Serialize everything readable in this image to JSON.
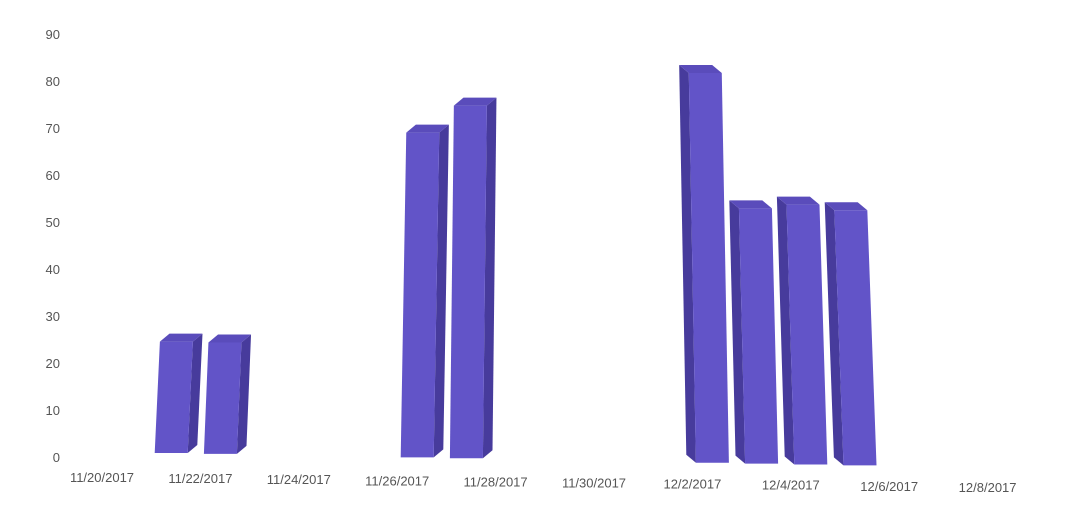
{
  "chart_data": {
    "type": "bar",
    "style": "3d-perspective",
    "title": "",
    "xlabel": "",
    "ylabel": "",
    "ylim": [
      0,
      90
    ],
    "y_ticks": [
      "0",
      "10",
      "20",
      "30",
      "40",
      "50",
      "60",
      "70",
      "80",
      "90"
    ],
    "x_ticks": [
      "11/20/2017",
      "11/22/2017",
      "11/24/2017",
      "11/26/2017",
      "11/28/2017",
      "11/30/2017",
      "12/2/2017",
      "12/4/2017",
      "12/6/2017",
      "12/8/2017"
    ],
    "grid": false,
    "legend": "none",
    "bar_color": "#6254c8",
    "bar_side_color": "#473b9c",
    "bar_top_color": "#5a4cbb",
    "series": [
      {
        "x": [
          "11/21/2017",
          "11/22/2017",
          "11/26/2017",
          "11/27/2017",
          "12/2/2017",
          "12/3/2017",
          "12/4/2017",
          "12/5/2017"
        ],
        "values": [
          24,
          24,
          70,
          76,
          84,
          55,
          56,
          55
        ]
      }
    ]
  }
}
